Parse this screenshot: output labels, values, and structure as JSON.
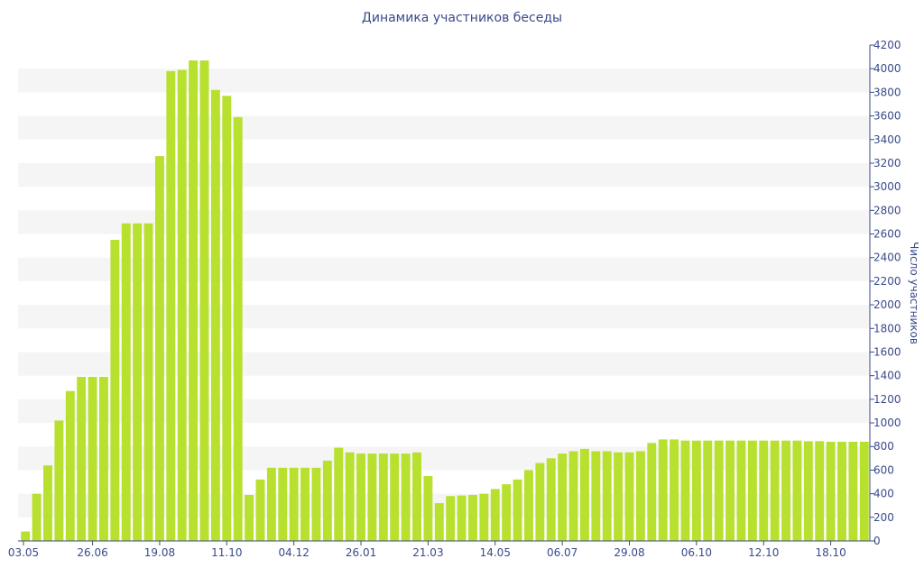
{
  "chart_data": {
    "type": "bar",
    "title": "Динамика участников беседы",
    "ylabel": "Число участников",
    "xlabel": "",
    "ylim": [
      0,
      4200
    ],
    "y_ticks": [
      0,
      200,
      400,
      600,
      800,
      1000,
      1200,
      1400,
      1600,
      1800,
      2000,
      2200,
      2400,
      2600,
      2800,
      3000,
      3200,
      3400,
      3600,
      3800,
      4000,
      4200
    ],
    "y_axis_side": "right",
    "grid": "alternating horizontal bands",
    "x_tick_labels": [
      "03.05",
      "26.06",
      "19.08",
      "11.10",
      "04.12",
      "26.01",
      "21.03",
      "14.05",
      "06.07",
      "29.08",
      "06.10",
      "12.10",
      "18.10"
    ],
    "x_tick_bar_index": [
      0,
      6,
      12,
      18,
      24,
      30,
      36,
      42,
      48,
      54,
      60,
      66,
      72
    ],
    "bar_color": "#b8e02e",
    "band_color": "#f5f5f5",
    "text_color": "#3a4a8a",
    "values": [
      80,
      400,
      640,
      1020,
      1270,
      1390,
      1390,
      1390,
      2550,
      2690,
      2690,
      2690,
      3260,
      3980,
      3990,
      4070,
      4070,
      3820,
      3770,
      3590,
      390,
      520,
      620,
      620,
      620,
      620,
      620,
      680,
      790,
      750,
      740,
      740,
      740,
      740,
      740,
      750,
      550,
      320,
      380,
      385,
      390,
      400,
      440,
      480,
      520,
      600,
      660,
      700,
      740,
      760,
      780,
      760,
      760,
      750,
      750,
      760,
      830,
      860,
      860,
      850,
      850,
      850,
      850,
      850,
      850,
      850,
      850,
      850,
      850,
      850,
      845,
      845,
      840,
      840,
      840,
      840
    ]
  }
}
